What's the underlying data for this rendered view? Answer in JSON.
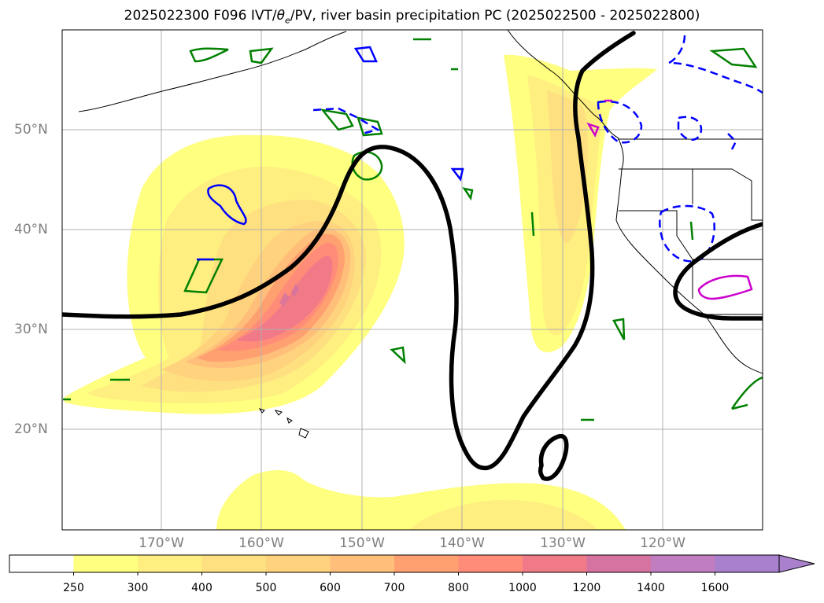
{
  "title": {
    "prefix": "2025022300 F096 IVT/",
    "theta": "θ",
    "theta_sub": "e",
    "suffix": "/PV, river basin precipitation PC (2025022500 - 2025022800)"
  },
  "lat_labels": [
    "50°N",
    "40°N",
    "30°N",
    "20°N"
  ],
  "lon_labels": [
    "170°W",
    "160°W",
    "150°W",
    "140°W",
    "130°W",
    "120°W"
  ],
  "colorbar": {
    "levels": [
      "250",
      "300",
      "400",
      "500",
      "600",
      "700",
      "800",
      "1000",
      "1200",
      "1400",
      "1600"
    ],
    "colors": [
      "#ffffff",
      "#ffff80",
      "#ffee80",
      "#ffe080",
      "#ffd27d",
      "#ffbf7a",
      "#ffa070",
      "#ff8c78",
      "#f07a88",
      "#d673a0",
      "#c07ec0",
      "#a880cc"
    ],
    "extend": "max"
  },
  "colors": {
    "theta_e_contour": "#000000",
    "pv_positive": "#008000",
    "pv_negative": "#0000ff",
    "precip_pc": "#cc00cc",
    "coastline": "#000000",
    "grid": "#b0b0b0",
    "tick_label": "#7f7f7f"
  }
}
